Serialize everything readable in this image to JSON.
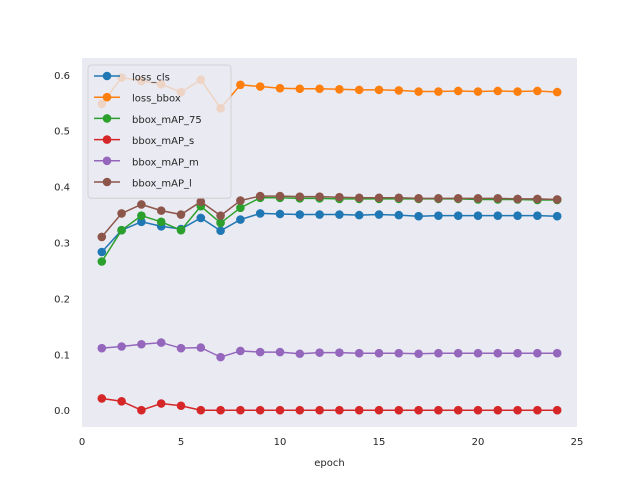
{
  "chart_data": {
    "type": "line",
    "title": "",
    "xlabel": "epoch",
    "ylabel": "",
    "xlim": [
      0,
      25
    ],
    "ylim": [
      -0.03,
      0.63
    ],
    "xticks": [
      0,
      5,
      10,
      15,
      20,
      25
    ],
    "yticks": [
      0.0,
      0.1,
      0.2,
      0.3,
      0.4,
      0.5,
      0.6
    ],
    "grid": false,
    "legend": "top-left",
    "x": [
      1,
      2,
      3,
      4,
      5,
      6,
      7,
      8,
      9,
      10,
      11,
      12,
      13,
      14,
      15,
      16,
      17,
      18,
      19,
      20,
      21,
      22,
      23,
      24
    ],
    "series": [
      {
        "name": "loss_cls",
        "color": "#1f77b4",
        "values": [
          0.283,
          0.322,
          0.337,
          0.329,
          0.324,
          0.344,
          0.321,
          0.341,
          0.352,
          0.351,
          0.35,
          0.35,
          0.35,
          0.349,
          0.35,
          0.349,
          0.347,
          0.348,
          0.348,
          0.348,
          0.348,
          0.348,
          0.348,
          0.347
        ]
      },
      {
        "name": "loss_bbox",
        "color": "#ff7f0e",
        "values": [
          0.548,
          0.595,
          0.589,
          0.583,
          0.569,
          0.591,
          0.54,
          0.582,
          0.579,
          0.576,
          0.575,
          0.575,
          0.574,
          0.573,
          0.573,
          0.572,
          0.57,
          0.57,
          0.571,
          0.57,
          0.571,
          0.57,
          0.571,
          0.569
        ]
      },
      {
        "name": "bbox_mAP_75",
        "color": "#2ca02c",
        "values": [
          0.266,
          0.322,
          0.348,
          0.337,
          0.322,
          0.365,
          0.335,
          0.362,
          0.38,
          0.38,
          0.379,
          0.379,
          0.378,
          0.378,
          0.378,
          0.378,
          0.378,
          0.378,
          0.378,
          0.377,
          0.377,
          0.377,
          0.376,
          0.376
        ]
      },
      {
        "name": "bbox_mAP_s",
        "color": "#d62728",
        "values": [
          0.021,
          0.016,
          0.0,
          0.012,
          0.008,
          0.0,
          0.0,
          0.0,
          0.0,
          0.0,
          0.0,
          0.0,
          0.0,
          0.0,
          0.0,
          0.0,
          0.0,
          0.0,
          0.0,
          0.0,
          0.0,
          0.0,
          0.0,
          0.0
        ]
      },
      {
        "name": "bbox_mAP_m",
        "color": "#9467bd",
        "values": [
          0.111,
          0.114,
          0.118,
          0.121,
          0.111,
          0.112,
          0.095,
          0.106,
          0.104,
          0.104,
          0.101,
          0.103,
          0.103,
          0.102,
          0.102,
          0.102,
          0.101,
          0.102,
          0.102,
          0.102,
          0.102,
          0.102,
          0.102,
          0.102
        ]
      },
      {
        "name": "bbox_mAP_l",
        "color": "#8c564b",
        "values": [
          0.31,
          0.352,
          0.368,
          0.357,
          0.35,
          0.373,
          0.348,
          0.375,
          0.383,
          0.383,
          0.382,
          0.382,
          0.381,
          0.38,
          0.38,
          0.38,
          0.379,
          0.379,
          0.379,
          0.379,
          0.379,
          0.378,
          0.378,
          0.377
        ]
      }
    ]
  }
}
